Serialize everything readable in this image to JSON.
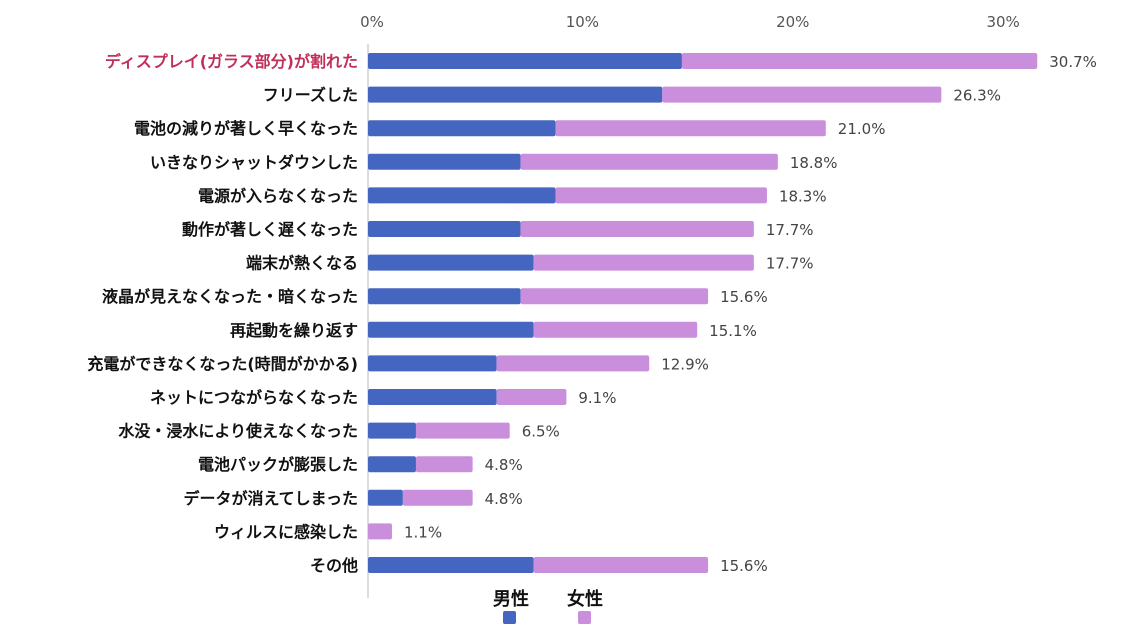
{
  "chart_data": {
    "type": "bar",
    "orientation": "horizontal",
    "stacked": true,
    "title": "",
    "xlabel": "",
    "ylabel": "",
    "xlim": [
      0,
      31
    ],
    "x_ticks": [
      "0%",
      "10%",
      "20%",
      "30%"
    ],
    "x_tick_values": [
      0,
      10,
      20,
      30
    ],
    "highlight_index": 0,
    "categories": [
      "ディスプレイ(ガラス部分)が割れた",
      "フリーズした",
      "電池の減りが著しく早くなった",
      "いきなりシャットダウンした",
      "電源が入らなくなった",
      "動作が著しく遅くなった",
      "端末が熱くなる",
      "液晶が見えなくなった・暗くなった",
      "再起動を繰り返す",
      "充電ができなくなった(時間がかかる)",
      "ネットにつながらなくなった",
      "水没・浸水により使えなくなった",
      "電池パックが膨張した",
      "データが消えてしまった",
      "ウィルスに感染した",
      "その他"
    ],
    "totals": [
      30.7,
      26.3,
      21.0,
      18.8,
      18.3,
      17.7,
      17.7,
      15.6,
      15.1,
      12.9,
      9.1,
      6.5,
      4.8,
      4.8,
      1.1,
      15.6
    ],
    "total_labels": [
      "30.7%",
      "26.3%",
      "21.0%",
      "18.8%",
      "18.3%",
      "17.7%",
      "17.7%",
      "15.6%",
      "15.1%",
      "12.9%",
      "9.1%",
      "6.5%",
      "4.8%",
      "4.8%",
      "1.1%",
      "15.6%"
    ],
    "series": [
      {
        "name": "男性",
        "color": "#4466c0",
        "values": [
          14.4,
          13.5,
          8.6,
          7.0,
          8.6,
          7.0,
          7.6,
          7.0,
          7.6,
          5.9,
          5.9,
          2.2,
          2.2,
          1.6,
          0.0,
          7.6
        ]
      },
      {
        "name": "女性",
        "color": "#c98fdc",
        "values": [
          16.3,
          12.8,
          12.4,
          11.8,
          9.7,
          10.7,
          10.1,
          8.6,
          7.5,
          7.0,
          3.2,
          4.3,
          2.6,
          3.2,
          1.1,
          8.0
        ]
      }
    ],
    "legend_position": "bottom",
    "grid": false
  },
  "colors": {
    "highlight_label": "#c0305a"
  }
}
